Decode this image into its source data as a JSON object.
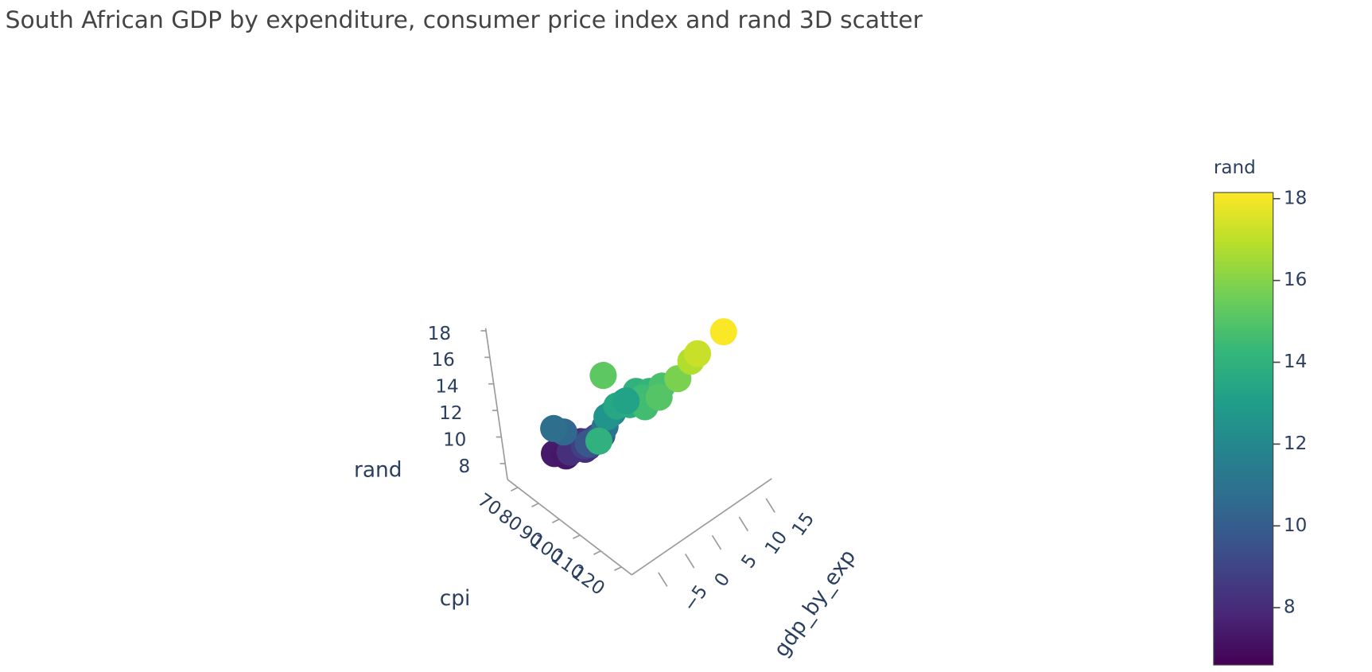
{
  "chart_data": {
    "type": "scatter3d",
    "title": "South African GDP by expenditure, consumer price index and rand 3D scatter",
    "xaxis_title": "gdp_by_exp",
    "yaxis_title": "cpi",
    "zaxis_title": "rand",
    "x": [
      0.5,
      1.2,
      -1,
      2,
      1.5,
      0,
      2.5,
      1,
      3,
      -0.5,
      2,
      1.5,
      3.5,
      0.8,
      2.2,
      1,
      2.8,
      0,
      1.8,
      -2,
      -3,
      2,
      3,
      1,
      4,
      2,
      5,
      3,
      6,
      4,
      2,
      7,
      3,
      5,
      8,
      4,
      10,
      11,
      15,
      -5
    ],
    "y": [
      68,
      69,
      70,
      71,
      72,
      73,
      74,
      75,
      76,
      77,
      78,
      79,
      80,
      81,
      82,
      84,
      85,
      86,
      88,
      80,
      78,
      90,
      92,
      95,
      96,
      98,
      100,
      102,
      104,
      106,
      93,
      108,
      110,
      112,
      114,
      97,
      116,
      117,
      120,
      108
    ],
    "z": [
      7.0,
      7.2,
      7.4,
      7.1,
      7.6,
      7.3,
      7.8,
      8.0,
      7.5,
      8.2,
      8.4,
      8.1,
      8.6,
      8.8,
      9.0,
      9.2,
      9.5,
      9.8,
      10.2,
      10.5,
      10.8,
      11.0,
      12.0,
      12.6,
      13.0,
      13.5,
      14.0,
      13.8,
      14.2,
      14.5,
      15.2,
      14.8,
      14.6,
      15.0,
      15.8,
      13.2,
      16.8,
      17.2,
      18.1,
      14.0
    ],
    "xlim": [
      -8,
      18
    ],
    "ylim": [
      65,
      125
    ],
    "zlim": [
      6.8,
      18.2
    ],
    "xticks": [
      {
        "value": -5,
        "label": "−5"
      },
      0,
      5,
      10,
      15
    ],
    "yticks": [
      70,
      80,
      90,
      100,
      110,
      120
    ],
    "zticks": [
      8,
      10,
      12,
      14,
      16,
      18
    ],
    "colorbar_title": "rand",
    "clim": [
      6.6,
      18.15
    ],
    "colorbar_ticks": [
      8,
      10,
      12,
      14,
      16,
      18
    ],
    "colorscale": [
      "#440154",
      "#482878",
      "#3e4989",
      "#31688e",
      "#26828e",
      "#1f9e89",
      "#35b779",
      "#6ece58",
      "#b5de2b",
      "#fde725"
    ]
  }
}
